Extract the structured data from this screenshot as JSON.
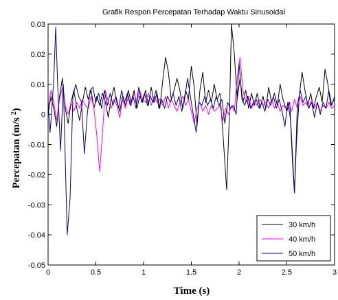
{
  "chart_data": {
    "type": "line",
    "title": "Grafik Respon Percepatan Terhadap Waktu Sinusoidal",
    "xlabel": "Time (s)",
    "ylabel": "Percepatan (m/s²)",
    "xlim": [
      0,
      3
    ],
    "ylim": [
      -0.05,
      0.03
    ],
    "x_ticks": [
      "0",
      "0.5",
      "1",
      "1.5",
      "2",
      "2.5",
      "3"
    ],
    "x_tick_values": [
      0,
      0.5,
      1,
      1.5,
      2,
      2.5,
      3
    ],
    "y_ticks": [
      "0.03",
      "0.02",
      "0.01",
      "0",
      "-0.01",
      "-0.02",
      "-0.03",
      "-0.04",
      "-0.05"
    ],
    "y_tick_values": [
      0.03,
      0.02,
      0.01,
      0,
      -0.01,
      -0.02,
      -0.03,
      -0.04,
      -0.05
    ],
    "grid": false,
    "legend_position": "bottom-right",
    "series": [
      {
        "name": "30 km/h",
        "color": "#000000",
        "points": [
          [
            0,
            0.0
          ],
          [
            0.03,
            0.006
          ],
          [
            0.06,
            0.002
          ],
          [
            0.09,
            -0.004
          ],
          [
            0.12,
            0.006
          ],
          [
            0.15,
            0.012
          ],
          [
            0.18,
            0.002
          ],
          [
            0.21,
            -0.003
          ],
          [
            0.24,
            0.004
          ],
          [
            0.27,
            0.008
          ],
          [
            0.3,
            0.002
          ],
          [
            0.33,
            -0.002
          ],
          [
            0.36,
            0.004
          ],
          [
            0.39,
            0.009
          ],
          [
            0.42,
            0.005
          ],
          [
            0.45,
            0.008
          ],
          [
            0.48,
            0.002
          ],
          [
            0.51,
            0.006
          ],
          [
            0.54,
            0.003
          ],
          [
            0.57,
            0.007
          ],
          [
            0.6,
            0.004
          ],
          [
            0.63,
            -0.001
          ],
          [
            0.66,
            0.005
          ],
          [
            0.69,
            0.009
          ],
          [
            0.72,
            0.004
          ],
          [
            0.75,
            0.001
          ],
          [
            0.78,
            0.006
          ],
          [
            0.81,
            0.003
          ],
          [
            0.84,
            0.008
          ],
          [
            0.87,
            0.004
          ],
          [
            0.9,
            0.008
          ],
          [
            0.93,
            0.002
          ],
          [
            0.96,
            0.006
          ],
          [
            0.99,
            0.004
          ],
          [
            1.02,
            0.008
          ],
          [
            1.05,
            0.003
          ],
          [
            1.08,
            0.009
          ],
          [
            1.11,
            0.004
          ],
          [
            1.14,
            0.007
          ],
          [
            1.17,
            0.002
          ],
          [
            1.2,
            0.011
          ],
          [
            1.23,
            0.019
          ],
          [
            1.26,
            0.014
          ],
          [
            1.29,
            0.005
          ],
          [
            1.32,
            0.008
          ],
          [
            1.35,
            0.012
          ],
          [
            1.38,
            0.008
          ],
          [
            1.41,
            0.002
          ],
          [
            1.44,
            0.008
          ],
          [
            1.47,
            0.005
          ],
          [
            1.5,
            0.016
          ],
          [
            1.53,
            0.009
          ],
          [
            1.56,
            -0.004
          ],
          [
            1.59,
            0.008
          ],
          [
            1.62,
            0.014
          ],
          [
            1.65,
            0.004
          ],
          [
            1.68,
            0.008
          ],
          [
            1.71,
            0.004
          ],
          [
            1.74,
            0.01
          ],
          [
            1.77,
            0.005
          ],
          [
            1.8,
            0.007
          ],
          [
            1.83,
            -0.006
          ],
          [
            1.87,
            -0.025
          ],
          [
            1.9,
            0.001
          ],
          [
            1.92,
            0.03
          ],
          [
            1.95,
            0.02
          ],
          [
            1.98,
            0.005
          ],
          [
            2.01,
            0.012
          ],
          [
            2.04,
            0.004
          ],
          [
            2.07,
            0.008
          ],
          [
            2.1,
            0.002
          ],
          [
            2.13,
            0.007
          ],
          [
            2.16,
            0.003
          ],
          [
            2.19,
            0.007
          ],
          [
            2.22,
            0.002
          ],
          [
            2.25,
            0.006
          ],
          [
            2.28,
            0.002
          ],
          [
            2.31,
            0.009
          ],
          [
            2.34,
            0.004
          ],
          [
            2.37,
            0.007
          ],
          [
            2.4,
            0.003
          ],
          [
            2.43,
            0.01
          ],
          [
            2.46,
            0.005
          ],
          [
            2.5,
            0.001
          ],
          [
            2.53,
            0.004
          ],
          [
            2.56,
            -0.016
          ],
          [
            2.58,
            -0.026
          ],
          [
            2.6,
            -0.01
          ],
          [
            2.63,
            0.006
          ],
          [
            2.66,
            0.014
          ],
          [
            2.69,
            0.008
          ],
          [
            2.72,
            0.003
          ],
          [
            2.75,
            0.007
          ],
          [
            2.78,
            0.002
          ],
          [
            2.81,
            0.006
          ],
          [
            2.84,
            0.009
          ],
          [
            2.87,
            0.004
          ],
          [
            2.9,
            0.015
          ],
          [
            2.93,
            0.01
          ],
          [
            2.96,
            0.003
          ],
          [
            3.0,
            0.005
          ]
        ]
      },
      {
        "name": "40 km/h",
        "color": "#ff00ff",
        "points": [
          [
            0,
            0.002
          ],
          [
            0.03,
            0.008
          ],
          [
            0.06,
            0.004
          ],
          [
            0.09,
            -0.002
          ],
          [
            0.12,
            0.005
          ],
          [
            0.15,
            0.009
          ],
          [
            0.18,
            0.003
          ],
          [
            0.21,
            0.0
          ],
          [
            0.24,
            0.004
          ],
          [
            0.27,
            0.001
          ],
          [
            0.3,
            0.004
          ],
          [
            0.33,
            0.002
          ],
          [
            0.36,
            0.005
          ],
          [
            0.39,
            0.003
          ],
          [
            0.42,
            0.002
          ],
          [
            0.45,
            0.006
          ],
          [
            0.48,
            0.002
          ],
          [
            0.51,
            -0.007
          ],
          [
            0.54,
            -0.019
          ],
          [
            0.57,
            -0.006
          ],
          [
            0.6,
            0.008
          ],
          [
            0.63,
            0.004
          ],
          [
            0.66,
            0.002
          ],
          [
            0.69,
            0.005
          ],
          [
            0.72,
            0.003
          ],
          [
            0.75,
            -0.001
          ],
          [
            0.78,
            0.005
          ],
          [
            0.81,
            0.002
          ],
          [
            0.84,
            0.006
          ],
          [
            0.87,
            0.003
          ],
          [
            0.9,
            0.007
          ],
          [
            0.93,
            0.004
          ],
          [
            0.96,
            0.008
          ],
          [
            0.99,
            0.005
          ],
          [
            1.02,
            0.004
          ],
          [
            1.05,
            0.007
          ],
          [
            1.08,
            0.003
          ],
          [
            1.11,
            0.006
          ],
          [
            1.14,
            0.004
          ],
          [
            1.17,
            0.005
          ],
          [
            1.2,
            0.003
          ],
          [
            1.23,
            0.006
          ],
          [
            1.26,
            0.002
          ],
          [
            1.29,
            0.005
          ],
          [
            1.32,
            0.003
          ],
          [
            1.35,
            0.001
          ],
          [
            1.38,
            0.004
          ],
          [
            1.41,
            0.006
          ],
          [
            1.44,
            0.003
          ],
          [
            1.47,
            0.005
          ],
          [
            1.5,
            0.001
          ],
          [
            1.53,
            -0.003
          ],
          [
            1.56,
            0.002
          ],
          [
            1.59,
            0.004
          ],
          [
            1.62,
            0.001
          ],
          [
            1.65,
            0.003
          ],
          [
            1.68,
            0.0
          ],
          [
            1.71,
            0.003
          ],
          [
            1.74,
            0.001
          ],
          [
            1.77,
            0.002
          ],
          [
            1.8,
            0.003
          ],
          [
            1.83,
            -0.002
          ],
          [
            1.86,
            0.002
          ],
          [
            1.89,
            0.0
          ],
          [
            1.92,
            0.003
          ],
          [
            1.95,
            0.001
          ],
          [
            1.98,
            0.012
          ],
          [
            2.01,
            0.019
          ],
          [
            2.04,
            0.008
          ],
          [
            2.07,
            0.004
          ],
          [
            2.1,
            0.006
          ],
          [
            2.13,
            0.002
          ],
          [
            2.16,
            0.004
          ],
          [
            2.19,
            0.003
          ],
          [
            2.22,
            0.005
          ],
          [
            2.25,
            0.003
          ],
          [
            2.28,
            0.004
          ],
          [
            2.31,
            0.002
          ],
          [
            2.34,
            0.005
          ],
          [
            2.37,
            0.002
          ],
          [
            2.4,
            0.004
          ],
          [
            2.43,
            0.001
          ],
          [
            2.46,
            0.003
          ],
          [
            2.49,
            0.002
          ],
          [
            2.52,
            0.004
          ],
          [
            2.55,
            0.001
          ],
          [
            2.58,
            0.005
          ],
          [
            2.61,
            0.002
          ],
          [
            2.64,
            0.006
          ],
          [
            2.67,
            0.003
          ],
          [
            2.7,
            0.004
          ],
          [
            2.73,
            0.002
          ],
          [
            2.76,
            0.005
          ],
          [
            2.79,
            0.002
          ],
          [
            2.82,
            0.004
          ],
          [
            2.85,
            0.001
          ],
          [
            2.88,
            0.003
          ],
          [
            2.91,
            0.002
          ],
          [
            2.94,
            0.004
          ],
          [
            2.97,
            0.002
          ],
          [
            3.0,
            0.003
          ]
        ]
      },
      {
        "name": "50 km/h",
        "color": "#00008b",
        "points": [
          [
            0,
            0.004
          ],
          [
            0.02,
            -0.006
          ],
          [
            0.04,
            0.002
          ],
          [
            0.06,
            0.012
          ],
          [
            0.08,
            0.029
          ],
          [
            0.1,
            0.01
          ],
          [
            0.13,
            -0.012
          ],
          [
            0.16,
            0.01
          ],
          [
            0.2,
            -0.04
          ],
          [
            0.23,
            -0.028
          ],
          [
            0.26,
            0.006
          ],
          [
            0.29,
            0.01
          ],
          [
            0.32,
            0.006
          ],
          [
            0.35,
            0.004
          ],
          [
            0.38,
            -0.013
          ],
          [
            0.41,
            0.0
          ],
          [
            0.44,
            0.008
          ],
          [
            0.47,
            0.009
          ],
          [
            0.5,
            0.004
          ],
          [
            0.53,
            0.007
          ],
          [
            0.56,
            0.002
          ],
          [
            0.59,
            0.008
          ],
          [
            0.62,
            0.003
          ],
          [
            0.65,
            0.007
          ],
          [
            0.68,
            0.003
          ],
          [
            0.71,
            0.006
          ],
          [
            0.74,
            0.002
          ],
          [
            0.77,
            0.008
          ],
          [
            0.8,
            0.004
          ],
          [
            0.83,
            0.007
          ],
          [
            0.86,
            0.003
          ],
          [
            0.89,
            0.006
          ],
          [
            0.92,
            0.002
          ],
          [
            0.95,
            0.009
          ],
          [
            0.98,
            0.004
          ],
          [
            1.01,
            0.007
          ],
          [
            1.04,
            0.003
          ],
          [
            1.07,
            0.006
          ],
          [
            1.1,
            0.004
          ],
          [
            1.13,
            0.008
          ],
          [
            1.16,
            0.002
          ],
          [
            1.19,
            0.005
          ],
          [
            1.22,
            0.002
          ],
          [
            1.25,
            0.006
          ],
          [
            1.28,
            0.004
          ],
          [
            1.31,
            0.007
          ],
          [
            1.34,
            0.003
          ],
          [
            1.37,
            0.006
          ],
          [
            1.4,
            0.001
          ],
          [
            1.43,
            0.005
          ],
          [
            1.46,
            0.012
          ],
          [
            1.49,
            0.006
          ],
          [
            1.52,
            0.0
          ],
          [
            1.55,
            -0.006
          ],
          [
            1.58,
            0.004
          ],
          [
            1.61,
            0.003
          ],
          [
            1.64,
            0.006
          ],
          [
            1.67,
            0.003
          ],
          [
            1.7,
            0.005
          ],
          [
            1.73,
            0.002
          ],
          [
            1.76,
            0.006
          ],
          [
            1.79,
            0.003
          ],
          [
            1.82,
            0.005
          ],
          [
            1.85,
            -0.003
          ],
          [
            1.88,
            0.004
          ],
          [
            1.91,
            0.002
          ],
          [
            1.94,
            0.003
          ],
          [
            1.97,
            0.0
          ],
          [
            2.0,
            0.017
          ],
          [
            2.03,
            0.005
          ],
          [
            2.06,
            0.003
          ],
          [
            2.09,
            0.006
          ],
          [
            2.12,
            0.002
          ],
          [
            2.15,
            0.004
          ],
          [
            2.18,
            0.005
          ],
          [
            2.21,
            0.002
          ],
          [
            2.24,
            0.004
          ],
          [
            2.27,
            0.001
          ],
          [
            2.3,
            0.005
          ],
          [
            2.33,
            0.003
          ],
          [
            2.36,
            0.006
          ],
          [
            2.39,
            0.002
          ],
          [
            2.42,
            0.005
          ],
          [
            2.45,
            0.001
          ],
          [
            2.48,
            -0.004
          ],
          [
            2.51,
            0.004
          ],
          [
            2.54,
            -0.002
          ],
          [
            2.58,
            -0.026
          ],
          [
            2.61,
            0.003
          ],
          [
            2.64,
            0.008
          ],
          [
            2.67,
            0.004
          ],
          [
            2.7,
            0.006
          ],
          [
            2.73,
            0.002
          ],
          [
            2.76,
            0.004
          ],
          [
            2.79,
            -0.001
          ],
          [
            2.82,
            0.004
          ],
          [
            2.85,
            0.0
          ],
          [
            2.88,
            0.004
          ],
          [
            2.91,
            0.002
          ],
          [
            2.94,
            0.008
          ],
          [
            2.97,
            0.003
          ],
          [
            3.0,
            0.006
          ]
        ]
      }
    ]
  }
}
